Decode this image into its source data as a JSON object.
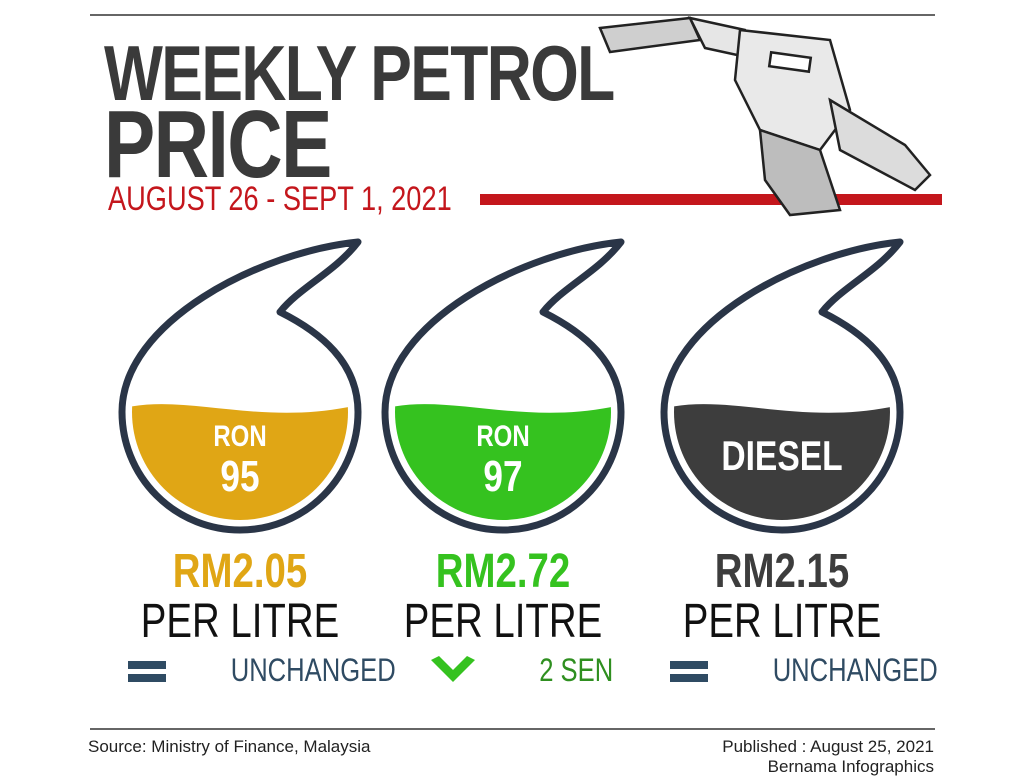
{
  "header": {
    "title_line1": "WEEKLY PETROL",
    "title_line2": "PRICE",
    "date": "AUGUST 26 - SEPT 1, 2021"
  },
  "fuels": [
    {
      "label_lines": [
        "RON",
        "95"
      ],
      "price": "RM2.05",
      "unit": "PER LITRE",
      "change": "UNCHANGED",
      "trend": "unchanged",
      "color": "#e0a615"
    },
    {
      "label_lines": [
        "RON",
        "97"
      ],
      "price": "RM2.72",
      "unit": "PER LITRE",
      "change": "2 SEN",
      "trend": "down",
      "color": "#35c21f"
    },
    {
      "label_lines": [
        "DIESEL"
      ],
      "price": "RM2.15",
      "unit": "PER LITRE",
      "change": "UNCHANGED",
      "trend": "unchanged",
      "color": "#3d3d3d"
    }
  ],
  "footer": {
    "source": "Source: Ministry of Finance, Malaysia",
    "published": "Published : August 25, 2021",
    "credit": "Bernama Infographics"
  }
}
